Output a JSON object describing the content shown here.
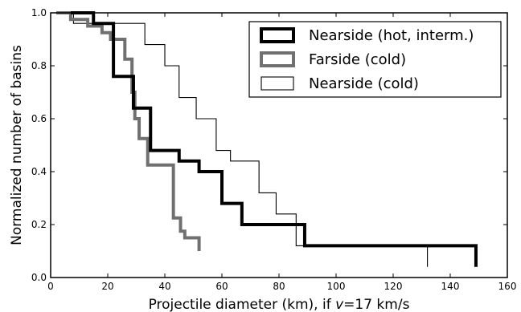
{
  "chart_data": {
    "type": "line",
    "step": "post",
    "xlabel": "Projectile diameter (km), if v=17 km/s",
    "xlabel_parts": {
      "before": "Projectile diameter (km), if ",
      "var": "v",
      "after": "=17 km/s"
    },
    "ylabel": "Normalized number of basins",
    "xlim": [
      0,
      160
    ],
    "ylim": [
      0,
      1.0
    ],
    "xticks": [
      "0",
      "20",
      "40",
      "60",
      "80",
      "100",
      "120",
      "140",
      "160"
    ],
    "xtick_values": [
      0,
      20,
      40,
      60,
      80,
      100,
      120,
      140,
      160
    ],
    "yticks": [
      "0.0",
      "0.2",
      "0.4",
      "0.6",
      "0.8",
      "1.0"
    ],
    "ytick_values": [
      0,
      0.2,
      0.4,
      0.6,
      0.8,
      1.0
    ],
    "grid": false,
    "legend_position": "top-right",
    "series": [
      {
        "name": "Nearside (hot, interm.)",
        "color": "#000000",
        "line_weight": "thick",
        "x": [
          7,
          15,
          22,
          29,
          35,
          45,
          52,
          60,
          67,
          89,
          149
        ],
        "y": [
          1.0,
          0.96,
          0.76,
          0.64,
          0.48,
          0.44,
          0.4,
          0.28,
          0.2,
          0.12,
          0.04
        ]
      },
      {
        "name": "Farside (cold)",
        "color": "#707070",
        "line_weight": "thick",
        "x": [
          2,
          7,
          13,
          18,
          21,
          26,
          28.5,
          29.5,
          31,
          34,
          43,
          45.5,
          47,
          52
        ],
        "y": [
          1.0,
          0.975,
          0.95,
          0.925,
          0.9,
          0.825,
          0.7,
          0.6,
          0.525,
          0.425,
          0.225,
          0.175,
          0.15,
          0.1
        ]
      },
      {
        "name": "Nearside (cold)",
        "color": "#000000",
        "line_weight": "thin",
        "x": [
          5,
          8,
          26,
          33,
          40,
          45,
          51,
          58,
          63,
          73,
          79,
          86,
          99,
          132
        ],
        "y": [
          1.0,
          0.96,
          0.96,
          0.88,
          0.8,
          0.68,
          0.6,
          0.48,
          0.44,
          0.32,
          0.24,
          0.12,
          0.12,
          0.04
        ]
      }
    ]
  }
}
